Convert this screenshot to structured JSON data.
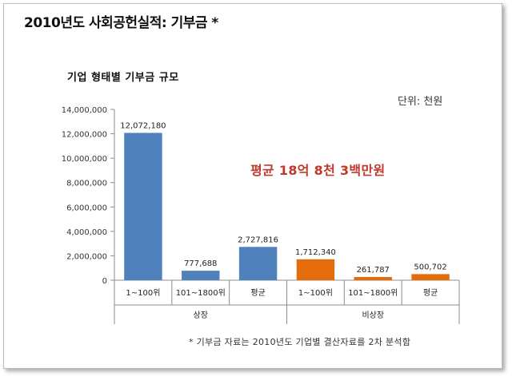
{
  "page": {
    "title": "2010년도 사회공헌실적: 기부금 *",
    "footnote": "* 기부금 자료는 2010년도 기업별 결산자료를 2차 분석함"
  },
  "chart_data": {
    "type": "bar",
    "title": "기업 형태별 기부금 규모",
    "unit_label": "단위: 천원",
    "annotation": "평균 18억 8천 3백만원",
    "ylim": [
      0,
      14000000
    ],
    "y_ticks": [
      0,
      2000000,
      4000000,
      6000000,
      8000000,
      10000000,
      12000000,
      14000000
    ],
    "y_tick_labels": [
      "0",
      "2,000,000",
      "4,000,000",
      "6,000,000",
      "8,000,000",
      "10,000,000",
      "12,000,000",
      "14,000,000"
    ],
    "categories": [
      "1~100위",
      "101~1800위",
      "평균",
      "1~100위",
      "101~1800위",
      "평균"
    ],
    "values": [
      12072180,
      777688,
      2727816,
      1712340,
      261787,
      500702
    ],
    "value_labels": [
      "12,072,180",
      "777,688",
      "2,727,816",
      "1,712,340",
      "261,787",
      "500,702"
    ],
    "groups": [
      {
        "name": "상장",
        "start": 0,
        "count": 3
      },
      {
        "name": "비상장",
        "start": 3,
        "count": 3
      }
    ],
    "bar_colors": [
      "#4f81bd",
      "#4f81bd",
      "#4f81bd",
      "#e46c0a",
      "#e46c0a",
      "#e46c0a"
    ],
    "grid": false,
    "legend": "none"
  }
}
